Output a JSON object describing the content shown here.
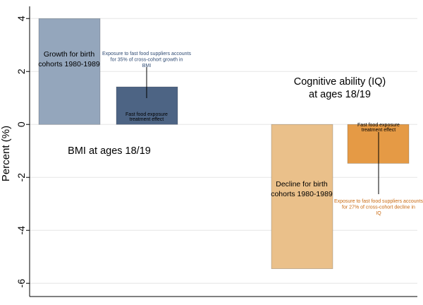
{
  "chart_data": {
    "type": "bar",
    "ylabel": "Percent (%)",
    "ylim": [
      -6.5,
      4.3
    ],
    "yticks": [
      4,
      2,
      0,
      -2,
      -4,
      -6
    ],
    "ytick_labels": [
      "4",
      "2",
      "0",
      "-2",
      "-4",
      "-6"
    ],
    "grid": true,
    "panels": [
      {
        "title": "BMI at ages 18/19",
        "bars": [
          {
            "label": "Growth for birth cohorts 1980-1989",
            "value": 4.0,
            "color": "#94a6bc"
          },
          {
            "label": "Fast food exposure treatment effect",
            "value": 1.42,
            "color": "#4d6484"
          }
        ],
        "annotation": {
          "text": "Exposure to fast food suppliers accounts for 35% of cross-cohort growth in BMI",
          "color": "#2e4a73"
        }
      },
      {
        "title": "Cognitive ability (IQ) at ages 18/19",
        "bars": [
          {
            "label": "Decline for birth cohorts 1980-1989",
            "value": -5.45,
            "color": "#eac08a"
          },
          {
            "label": "Fast food exposure treatment effect",
            "value": -1.47,
            "color": "#e59a45"
          }
        ],
        "annotation": {
          "text": "Exposure to fast food suppliers accounts for 27% of cross-cohort decline in IQ",
          "color": "#c96a12"
        }
      }
    ]
  }
}
